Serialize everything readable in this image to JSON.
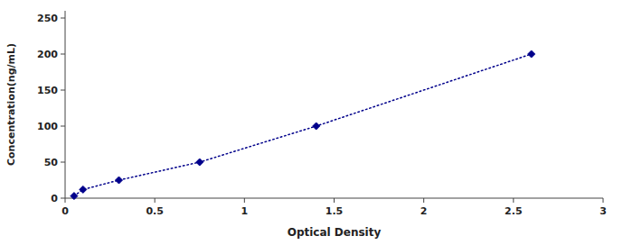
{
  "chart_data": {
    "type": "line",
    "xlabel": "Optical Density",
    "ylabel": "Concentration(ng/mL)",
    "x": [
      0.05,
      0.1,
      0.3,
      0.75,
      1.4,
      2.6
    ],
    "values": [
      3,
      12,
      25,
      50,
      100,
      200
    ],
    "color": "#00008B",
    "marker": "diamond",
    "line_style": "dotted",
    "xlim": [
      0,
      3
    ],
    "ylim": [
      0,
      260
    ],
    "xticks": [
      0,
      0.5,
      1,
      1.5,
      2,
      2.5,
      3
    ],
    "yticks": [
      0,
      50,
      100,
      150,
      200,
      250
    ],
    "grid": false
  }
}
